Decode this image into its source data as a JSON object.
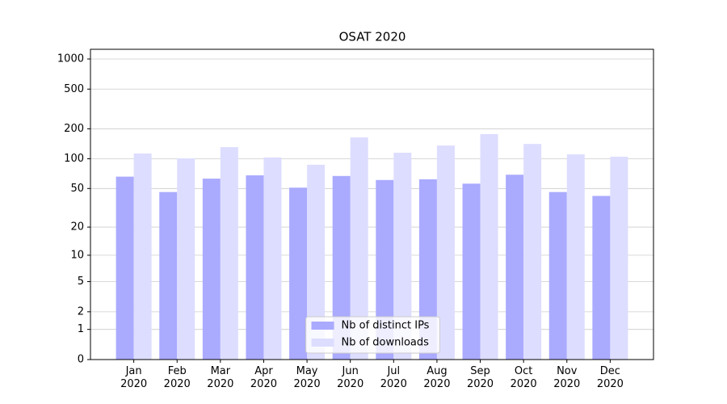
{
  "chart_data": {
    "type": "bar",
    "title": "OSAT 2020",
    "categories": [
      "Jan\n2020",
      "Feb\n2020",
      "Mar\n2020",
      "Apr\n2020",
      "May\n2020",
      "Jun\n2020",
      "Jul\n2020",
      "Aug\n2020",
      "Sep\n2020",
      "Oct\n2020",
      "Nov\n2020",
      "Dec\n2020"
    ],
    "series": [
      {
        "name": "Nb of distinct IPs",
        "color": "#aaaaff",
        "values": [
          66,
          46,
          63,
          68,
          51,
          67,
          61,
          62,
          56,
          69,
          46,
          42
        ]
      },
      {
        "name": "Nb of downloads",
        "color": "#ddddff",
        "values": [
          113,
          101,
          131,
          103,
          87,
          164,
          115,
          136,
          177,
          141,
          111,
          105
        ]
      }
    ],
    "yscale": "log1p",
    "ylim": [
      0,
      1250
    ],
    "yticks": [
      0,
      1,
      2,
      5,
      10,
      20,
      50,
      100,
      200,
      500,
      1000
    ],
    "grid": true,
    "legend": "lower center"
  }
}
